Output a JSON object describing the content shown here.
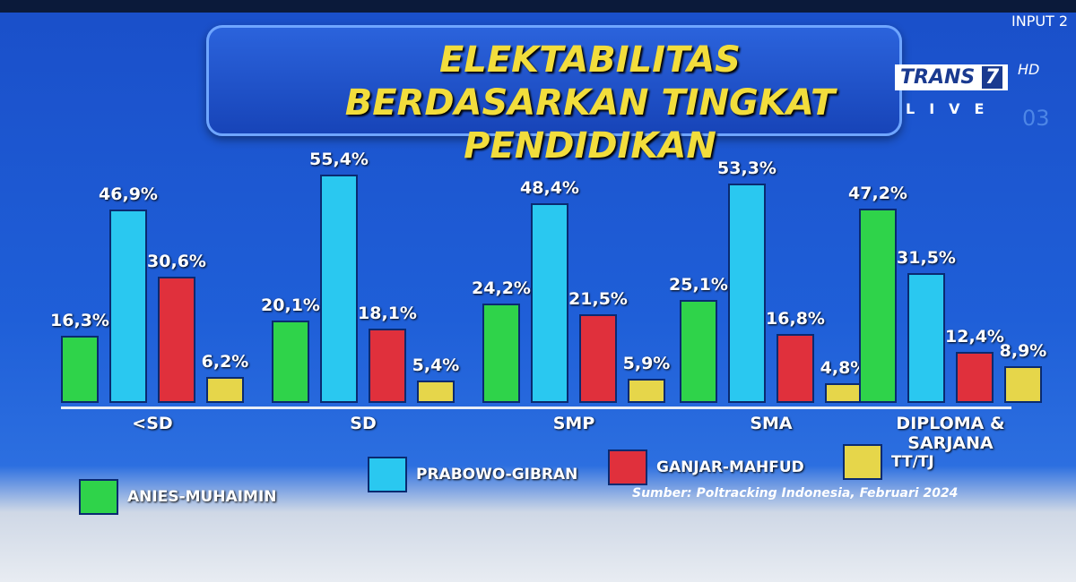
{
  "broadcast": {
    "input": "INPUT 2",
    "channel": "TRANS",
    "channel_number": "7",
    "hd": "HD",
    "live": "LIVE",
    "page": "03"
  },
  "chart_data": {
    "type": "bar",
    "title": "ELEKTABILITAS BERDASARKAN TINGKAT PENDIDIKAN",
    "categories": [
      "<SD",
      "SD",
      "SMP",
      "SMA",
      "DIPLOMA & SARJANA"
    ],
    "series": [
      {
        "name": "ANIES-MUHAIMIN",
        "color": "#2fd34a",
        "values": [
          16.3,
          20.1,
          24.2,
          25.1,
          47.2
        ],
        "value_labels": [
          "16,3%",
          "20,1%",
          "24,2%",
          "25,1%",
          "47,2%"
        ]
      },
      {
        "name": "PRABOWO-GIBRAN",
        "color": "#2ac8f0",
        "values": [
          46.9,
          55.4,
          48.4,
          53.3,
          31.5
        ],
        "value_labels": [
          "46,9%",
          "55,4%",
          "48,4%",
          "53,3%",
          "31,5%"
        ]
      },
      {
        "name": "GANJAR-MAHFUD",
        "color": "#e0303c",
        "values": [
          30.6,
          18.1,
          21.5,
          16.8,
          12.4
        ],
        "value_labels": [
          "30,6%",
          "18,1%",
          "21,5%",
          "16,8%",
          "12,4%"
        ]
      },
      {
        "name": "TT/TJ",
        "color": "#e6d64a",
        "values": [
          6.2,
          5.4,
          5.9,
          4.8,
          8.9
        ],
        "value_labels": [
          "6,2%",
          "5,4%",
          "5,9%",
          "4,8%",
          "8,9%"
        ]
      }
    ],
    "source": "Sumber: Poltracking Indonesia, Februari 2024"
  }
}
